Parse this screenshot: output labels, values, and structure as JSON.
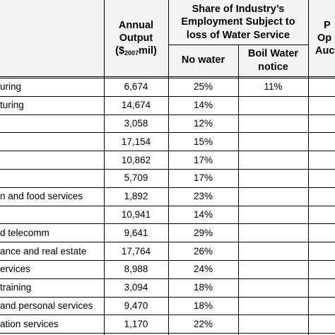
{
  "header": {
    "annual_output_l1": "Annual",
    "annual_output_l2": "Output",
    "annual_output_l3_pre": "($",
    "annual_output_l3_sub": "2007",
    "annual_output_l3_post": "mil)",
    "share_l1": "Share of Industry’s",
    "share_l2": "Employment Subject to",
    "share_l3": "loss of Water Service",
    "no_water": "No water",
    "boil_l1": "Boil Water",
    "boil_l2": "notice",
    "right_l1": "P",
    "right_l2": "Op",
    "right_l3": "Auck"
  },
  "rows": [
    {
      "industry": "uring",
      "output": "6,674",
      "no_water": "25%",
      "boil": "11%"
    },
    {
      "industry": "turing",
      "output": "14,674",
      "no_water": "14%",
      "boil": ""
    },
    {
      "industry": "",
      "output": "3,058",
      "no_water": "12%",
      "boil": ""
    },
    {
      "industry": "",
      "output": "17,154",
      "no_water": "15%",
      "boil": ""
    },
    {
      "industry": "",
      "output": "10,862",
      "no_water": "17%",
      "boil": ""
    },
    {
      "industry": "",
      "output": "5,709",
      "no_water": "17%",
      "boil": ""
    },
    {
      "industry": "n and food services",
      "output": "1,892",
      "no_water": "23%",
      "boil": ""
    },
    {
      "industry": "",
      "output": "10,941",
      "no_water": "14%",
      "boil": ""
    },
    {
      "industry": "d telecomm",
      "output": "9,641",
      "no_water": "29%",
      "boil": ""
    },
    {
      "industry": "ance and real estate",
      "output": "17,764",
      "no_water": "26%",
      "boil": ""
    },
    {
      "industry": "ervices",
      "output": "8,988",
      "no_water": "24%",
      "boil": ""
    },
    {
      "industry": "training",
      "output": "3,094",
      "no_water": "18%",
      "boil": ""
    },
    {
      "industry": "and personal services",
      "output": "9,470",
      "no_water": "18%",
      "boil": ""
    },
    {
      "industry": "ation services",
      "output": "1,170",
      "no_water": "22%",
      "boil": ""
    }
  ]
}
